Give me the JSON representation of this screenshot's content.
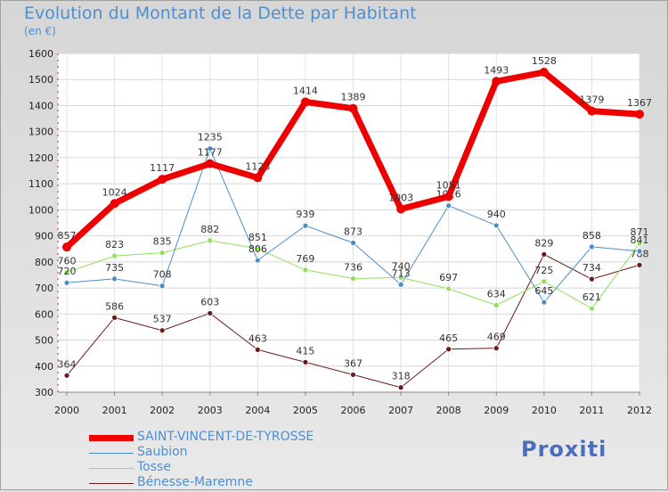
{
  "title": "Evolution du Montant de la Dette par Habitant",
  "unit_label": "(en €)",
  "logo_text": "Proxiti",
  "chart_data": {
    "type": "line",
    "categories": [
      "2000",
      "2001",
      "2002",
      "2003",
      "2004",
      "2005",
      "2006",
      "2007",
      "2008",
      "2009",
      "2010",
      "2011",
      "2012"
    ],
    "ylim": [
      300,
      1600
    ],
    "yticks": [
      300,
      400,
      500,
      600,
      700,
      800,
      900,
      1000,
      1100,
      1200,
      1300,
      1400,
      1500,
      1600
    ],
    "grid": true,
    "legend_position": "bottom-left",
    "series": [
      {
        "name": "SAINT-VINCENT-DE-TYROSSE",
        "color": "#ee0000",
        "width": 7,
        "values": [
          857,
          1024,
          1117,
          1177,
          1123,
          1414,
          1389,
          1003,
          1051,
          1493,
          1528,
          1379,
          1367
        ]
      },
      {
        "name": "Saubion",
        "color": "#4b8ec6",
        "width": 1,
        "values": [
          720,
          735,
          708,
          1235,
          806,
          939,
          873,
          713,
          1016,
          940,
          645,
          858,
          841
        ]
      },
      {
        "name": "Tosse",
        "color": "#8fe05a",
        "width": 1,
        "values": [
          760,
          823,
          835,
          882,
          851,
          769,
          736,
          740,
          697,
          634,
          725,
          621,
          871
        ]
      },
      {
        "name": "Bénesse-Maremne",
        "color": "#6b1a1a",
        "width": 1,
        "values": [
          364,
          586,
          537,
          603,
          463,
          415,
          367,
          318,
          465,
          469,
          829,
          734,
          788
        ]
      }
    ]
  }
}
